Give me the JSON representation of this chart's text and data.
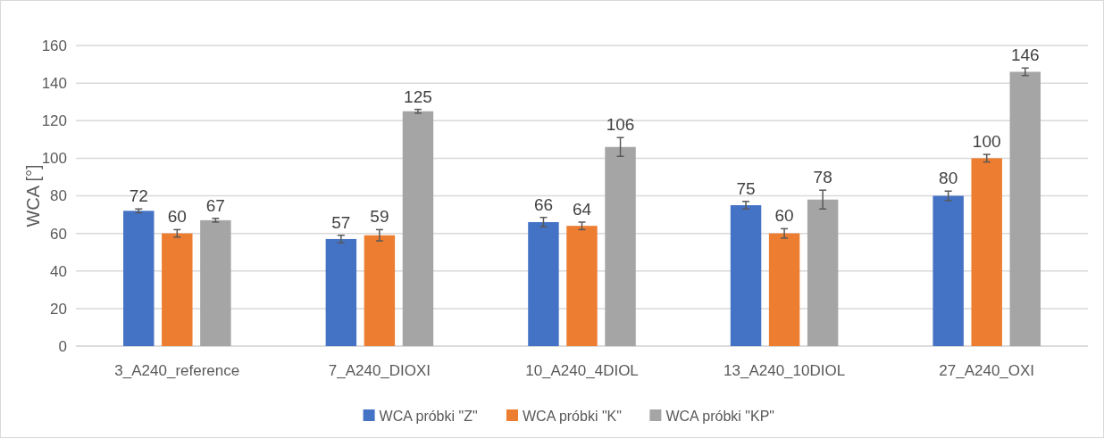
{
  "chart_data": {
    "type": "bar",
    "ylabel": "WCA [°]",
    "categories": [
      "3_A240_reference",
      "7_A240_DIOXI",
      "10_A240_4DIOL",
      "13_A240_10DIOL",
      "27_A240_OXI"
    ],
    "series": [
      {
        "name": "WCA próbki \"Z\"",
        "color": "#4472c4",
        "values": [
          72,
          57,
          66,
          75,
          80
        ],
        "errors": [
          1,
          2,
          2.5,
          2,
          2.5
        ]
      },
      {
        "name": "WCA próbki \"K\"",
        "color": "#ed7d31",
        "values": [
          60,
          59,
          64,
          60,
          100
        ],
        "errors": [
          2,
          3,
          2,
          2.5,
          2
        ]
      },
      {
        "name": "WCA próbki \"KP\"",
        "color": "#a5a5a5",
        "values": [
          67,
          125,
          106,
          78,
          146
        ],
        "errors": [
          1,
          1,
          5,
          5,
          2
        ]
      }
    ],
    "ylim": [
      0,
      160
    ],
    "yticks": [
      0,
      20,
      40,
      60,
      80,
      100,
      120,
      140,
      160
    ],
    "grid": "y",
    "legend": "bottom",
    "data_labels": true
  }
}
